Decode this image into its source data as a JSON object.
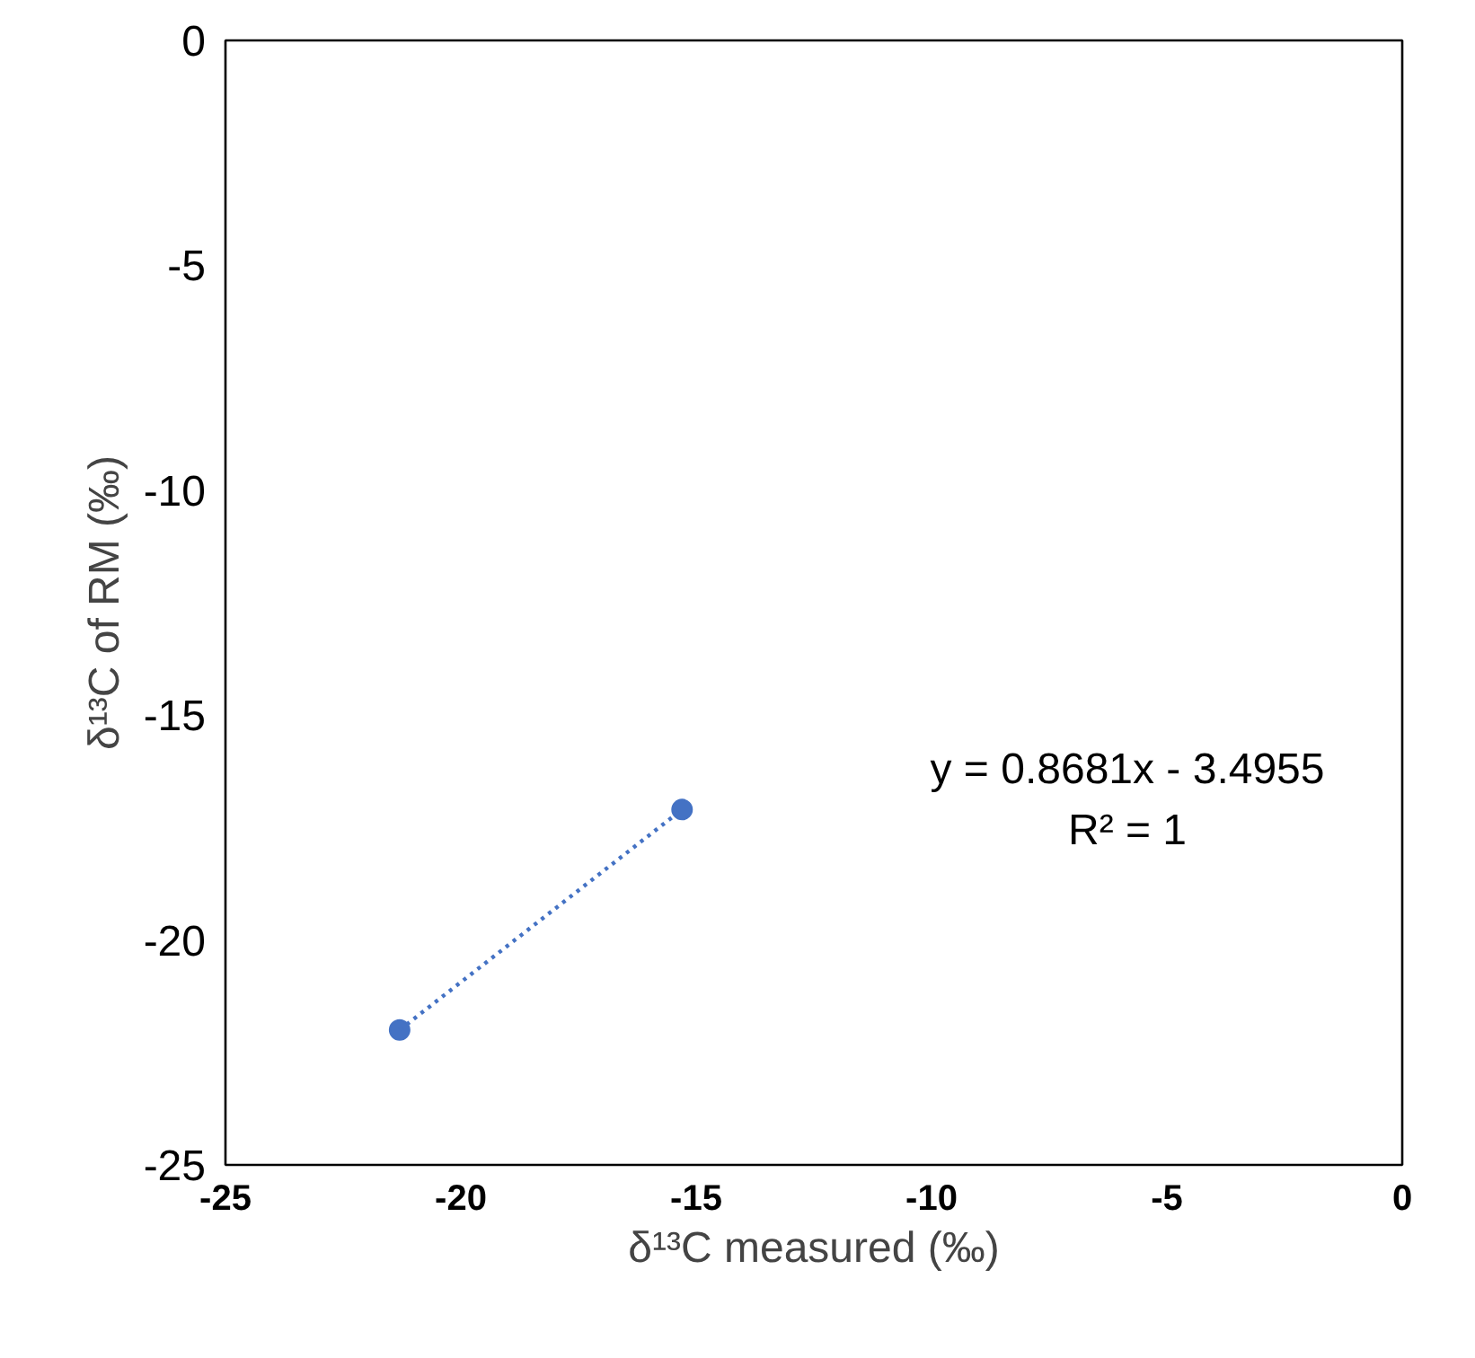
{
  "chart_data": {
    "type": "scatter",
    "xlabel": "δ¹³C measured (‰)",
    "ylabel": "δ¹³C of RM (‰)",
    "xlim": [
      -25,
      0
    ],
    "xticks": [
      -25,
      -20,
      -15,
      -10,
      -5,
      0
    ],
    "ylim": [
      -25,
      0
    ],
    "yticks": [
      -25,
      -20,
      -15,
      -10,
      -5,
      0
    ],
    "x": [
      -21.3,
      -15.3
    ],
    "series": [
      {
        "values": [
          -22.0,
          -17.1
        ],
        "color": "#4472c4",
        "marker": "circle"
      },
      {
        "type": "line",
        "x": [
          -21.3,
          -15.3
        ],
        "values": [
          -22.0,
          -17.1
        ],
        "color": "#4472c4",
        "line_style": "dotted"
      }
    ],
    "annotations": [
      "y = 0.8681x - 3.4955",
      "R² = 1"
    ]
  }
}
